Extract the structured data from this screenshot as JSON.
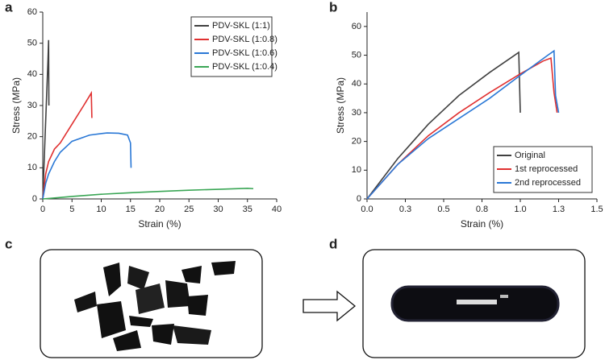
{
  "chart_data": [
    {
      "type": "line",
      "label": "a",
      "xlabel": "Strain (%)",
      "ylabel": "Stress (MPa)",
      "xlim": [
        0,
        40
      ],
      "xticks": [
        0,
        5,
        10,
        15,
        20,
        25,
        30,
        35,
        40
      ],
      "ylim": [
        0,
        60
      ],
      "yticks": [
        0,
        10,
        20,
        30,
        40,
        50,
        60
      ],
      "legend": "top-right",
      "series": [
        {
          "name": "PDV-SKL (1:1)",
          "color": "#404040",
          "x": [
            0,
            0.3,
            0.6,
            0.9,
            1.0,
            1.05
          ],
          "values": [
            0,
            15,
            30,
            45,
            51,
            30
          ]
        },
        {
          "name": "PDV-SKL (1:0.8)",
          "color": "#e03030",
          "x": [
            0,
            0.5,
            1,
            2,
            3,
            5,
            7,
            8.3,
            8.4
          ],
          "values": [
            0,
            8,
            12,
            16,
            18,
            24,
            30,
            34,
            26
          ]
        },
        {
          "name": "PDV-SKL (1:0.6)",
          "color": "#2a78d6",
          "x": [
            0,
            0.5,
            1,
            2,
            3,
            5,
            8,
            11,
            13,
            14.5,
            15,
            15.1
          ],
          "values": [
            0,
            5,
            8,
            12,
            15,
            18.5,
            20.5,
            21.2,
            21.1,
            20.5,
            18,
            10
          ]
        },
        {
          "name": "PDV-SKL (1:0.4)",
          "color": "#3aa655",
          "x": [
            0,
            2,
            5,
            10,
            15,
            20,
            25,
            30,
            35,
            36
          ],
          "values": [
            0,
            0.3,
            0.8,
            1.5,
            2,
            2.4,
            2.8,
            3.1,
            3.4,
            3.3
          ]
        }
      ]
    },
    {
      "type": "line",
      "label": "b",
      "xlabel": "Strain (%)",
      "ylabel": "Stress (MPa)",
      "xlim": [
        0,
        1.5
      ],
      "xticks": [
        {
          "value": 0,
          "label": "0.0"
        },
        {
          "value": 0.25,
          "label": "0.3"
        },
        {
          "value": 0.5,
          "label": "0.5"
        },
        {
          "value": 0.75,
          "label": "0.8"
        },
        {
          "value": 1,
          "label": "1.0"
        },
        {
          "value": 1.25,
          "label": "1.3"
        },
        {
          "value": 1.5,
          "label": "1.5"
        }
      ],
      "ylim": [
        0,
        65
      ],
      "yticks": [
        0,
        10,
        20,
        30,
        40,
        50,
        60
      ],
      "legend": "bottom-right",
      "series": [
        {
          "name": "Original",
          "color": "#404040",
          "x": [
            0,
            0.2,
            0.4,
            0.6,
            0.8,
            0.95,
            0.99,
            1.0
          ],
          "values": [
            0,
            14,
            26,
            36,
            44,
            49.5,
            51,
            30
          ]
        },
        {
          "name": "1st reprocessed",
          "color": "#e03030",
          "x": [
            0,
            0.2,
            0.4,
            0.6,
            0.8,
            1.0,
            1.15,
            1.2,
            1.22,
            1.24
          ],
          "values": [
            0,
            12,
            22,
            30,
            37,
            43.5,
            48,
            49,
            37,
            30
          ]
        },
        {
          "name": "2nd reprocessed",
          "color": "#2a78d6",
          "x": [
            0,
            0.2,
            0.4,
            0.6,
            0.8,
            1.0,
            1.18,
            1.22,
            1.23,
            1.25
          ],
          "values": [
            0,
            12,
            21,
            28,
            35,
            43,
            50,
            51.5,
            36,
            30
          ]
        }
      ]
    }
  ],
  "photos": [
    {
      "label": "c"
    },
    {
      "label": "d"
    }
  ]
}
